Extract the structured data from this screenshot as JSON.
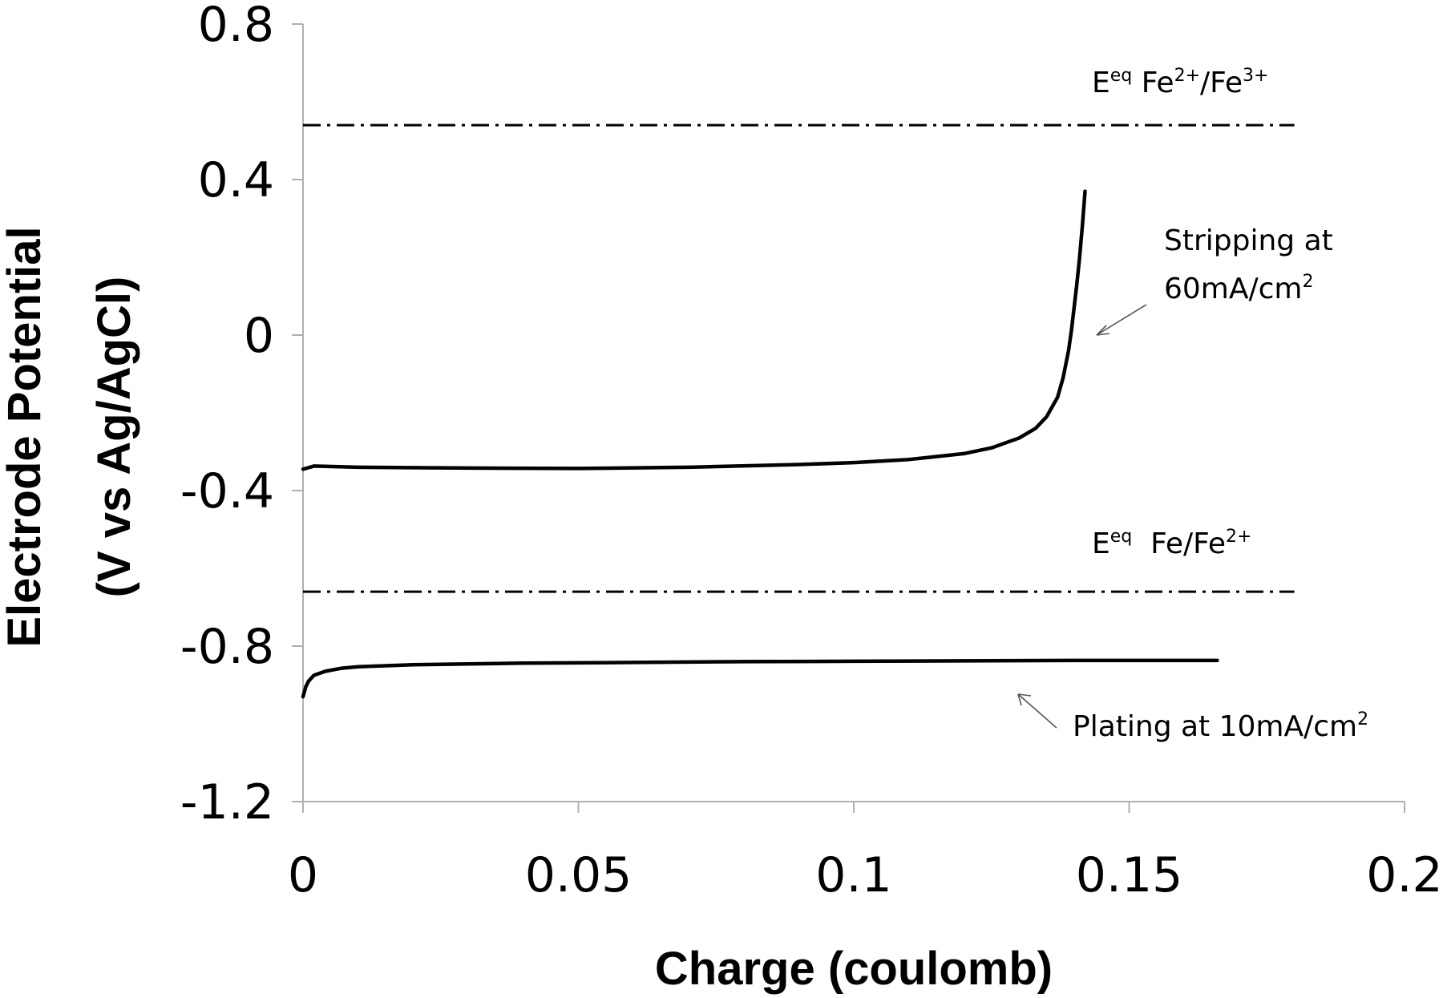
{
  "chart_data": {
    "type": "line",
    "xlabel": "Charge (coulomb)",
    "ylabel_line1": "Electrode Potential",
    "ylabel_line2": "(V vs Ag/AgCl)",
    "xlim": [
      0,
      0.2
    ],
    "ylim": [
      -1.2,
      0.8
    ],
    "x_ticks": [
      0,
      0.05,
      0.1,
      0.15,
      0.2
    ],
    "x_tick_labels": [
      "0",
      "0.05",
      "0.1",
      "0.15",
      "0.2"
    ],
    "y_ticks": [
      0.8,
      0.4,
      0,
      -0.4,
      -0.8,
      -1.2
    ],
    "y_tick_labels": [
      "0.8",
      "0.4",
      "0",
      "-0.4",
      "-0.8",
      "-1.2"
    ],
    "grid": false,
    "legend": "none",
    "series": [
      {
        "label_main": "Stripping at",
        "label_line2": "60mA/cm",
        "label_sup": "2",
        "x": [
          0,
          0.002,
          0.01,
          0.03,
          0.05,
          0.07,
          0.09,
          0.1,
          0.11,
          0.12,
          0.125,
          0.13,
          0.133,
          0.135,
          0.137,
          0.138,
          0.139,
          0.1395,
          0.14,
          0.1405,
          0.141,
          0.1415,
          0.142
        ],
        "y": [
          -0.345,
          -0.337,
          -0.34,
          -0.342,
          -0.343,
          -0.34,
          -0.333,
          -0.328,
          -0.32,
          -0.305,
          -0.29,
          -0.265,
          -0.24,
          -0.21,
          -0.16,
          -0.11,
          -0.04,
          0.01,
          0.07,
          0.13,
          0.2,
          0.28,
          0.37
        ]
      },
      {
        "label_main": "Plating at 10mA/cm",
        "label_sup": "2",
        "x": [
          0,
          0.0005,
          0.001,
          0.002,
          0.004,
          0.007,
          0.01,
          0.02,
          0.04,
          0.06,
          0.08,
          0.1,
          0.12,
          0.14,
          0.155,
          0.166
        ],
        "y": [
          -0.93,
          -0.905,
          -0.89,
          -0.875,
          -0.865,
          -0.857,
          -0.853,
          -0.848,
          -0.844,
          -0.842,
          -0.84,
          -0.839,
          -0.838,
          -0.837,
          -0.837,
          -0.837
        ]
      }
    ],
    "reference_lines": [
      {
        "y": 0.54,
        "x_range": [
          0,
          0.18
        ],
        "label_E": "E",
        "label_eq": "eq",
        "label_p1": " Fe",
        "sup1": "2+",
        "label_p2": "/Fe",
        "sup2": "3+"
      },
      {
        "y": -0.66,
        "x_range": [
          0,
          0.18
        ],
        "label_E": "E",
        "label_eq": "eq",
        "label_p1": "  Fe/Fe",
        "sup1": "2+"
      }
    ]
  }
}
